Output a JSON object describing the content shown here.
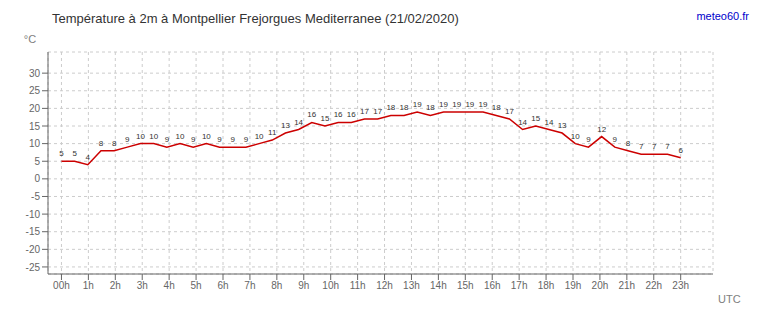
{
  "chart_data": {
    "type": "line",
    "title": "Température à 2m à Montpellier Frejorgues Mediterranee (21/02/2020)",
    "x_label": "UTC",
    "y_label": "°C",
    "annotations": [
      {
        "text": "meteo60.fr",
        "color": "#0000cc"
      }
    ],
    "x": [
      0,
      0.489362,
      0.978723,
      1.468085,
      1.957447,
      2.446809,
      2.93617,
      3.425532,
      3.914894,
      4.404255,
      4.893617,
      5.382979,
      5.87234,
      6.361702,
      6.851064,
      7.340426,
      7.829787,
      8.319149,
      8.808511,
      9.297872,
      9.787234,
      10.276596,
      10.765957,
      11.255319,
      11.744681,
      12.234043,
      12.723404,
      13.212766,
      13.702128,
      14.191489,
      14.680851,
      15.170213,
      15.659574,
      16.148936,
      16.638298,
      17.12766,
      17.617021,
      18.106383,
      18.595745,
      19.085106,
      19.574468,
      20.06383,
      20.553191,
      21.042553,
      21.531915,
      22.021277,
      22.510638,
      23
    ],
    "values": [
      5,
      5,
      4,
      8,
      8,
      9,
      10,
      10,
      9,
      10,
      9,
      10,
      9,
      9,
      9,
      10,
      11,
      13,
      14,
      16,
      15,
      16,
      16,
      17,
      17,
      18,
      18,
      19,
      18,
      19,
      19,
      19,
      19,
      18,
      17,
      14,
      15,
      14,
      13,
      10,
      9,
      12,
      9,
      8,
      7,
      7,
      7,
      6
    ],
    "color": "#cc0000",
    "xlim": [
      -0.5,
      24.2
    ],
    "xticks": [
      {
        "value": 0,
        "label": "00h"
      },
      {
        "value": 1,
        "label": "1h"
      },
      {
        "value": 2,
        "label": "2h"
      },
      {
        "value": 3,
        "label": "3h"
      },
      {
        "value": 4,
        "label": "4h"
      },
      {
        "value": 5,
        "label": "5h"
      },
      {
        "value": 6,
        "label": "6h"
      },
      {
        "value": 7,
        "label": "7h"
      },
      {
        "value": 8,
        "label": "8h"
      },
      {
        "value": 9,
        "label": "9h"
      },
      {
        "value": 10,
        "label": "10h"
      },
      {
        "value": 11,
        "label": "11h"
      },
      {
        "value": 12,
        "label": "12h"
      },
      {
        "value": 13,
        "label": "13h"
      },
      {
        "value": 14,
        "label": "14h"
      },
      {
        "value": 15,
        "label": "15h"
      },
      {
        "value": 16,
        "label": "16h"
      },
      {
        "value": 17,
        "label": "17h"
      },
      {
        "value": 18,
        "label": "18h"
      },
      {
        "value": 19,
        "label": "19h"
      },
      {
        "value": 20,
        "label": "20h"
      },
      {
        "value": 21,
        "label": "21h"
      },
      {
        "value": 22,
        "label": "22h"
      },
      {
        "value": 23,
        "label": "23h"
      }
    ],
    "ylim": [
      -27,
      36
    ],
    "yticks": [
      -25,
      -20,
      -15,
      -10,
      -5,
      0,
      5,
      10,
      15,
      20,
      25,
      30
    ],
    "grid": true,
    "data_labels": true
  }
}
